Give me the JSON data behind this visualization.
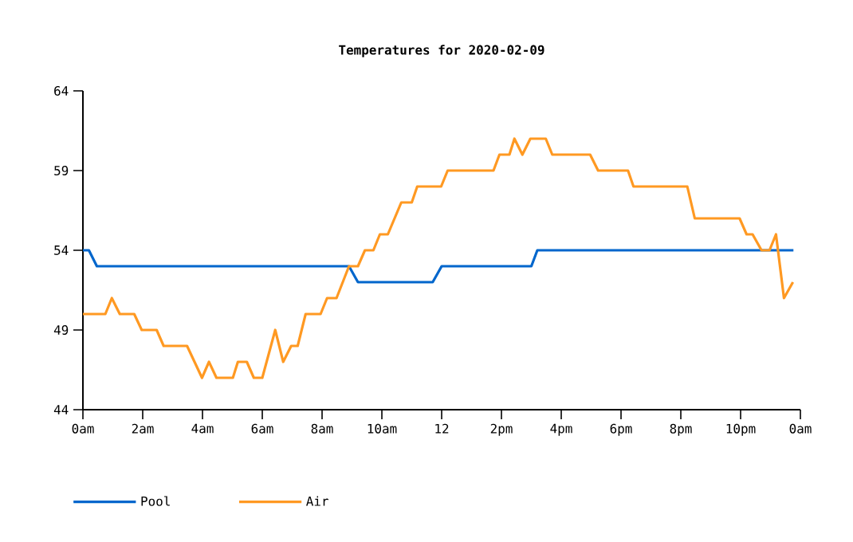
{
  "chart_data": {
    "type": "line",
    "title": "Temperatures for 2020-02-09",
    "xlim": [
      "2020-02-09T00:00",
      "2020-02-10T00:00"
    ],
    "ylim": [
      44,
      64
    ],
    "xticks": [
      {
        "value": "2020-02-09T00:00",
        "label": "0am"
      },
      {
        "value": "2020-02-09T02:00",
        "label": "2am"
      },
      {
        "value": "2020-02-09T04:00",
        "label": "4am"
      },
      {
        "value": "2020-02-09T06:00",
        "label": "6am"
      },
      {
        "value": "2020-02-09T08:00",
        "label": "8am"
      },
      {
        "value": "2020-02-09T10:00",
        "label": "10am"
      },
      {
        "value": "2020-02-09T12:00",
        "label": "12"
      },
      {
        "value": "2020-02-09T14:00",
        "label": "2pm"
      },
      {
        "value": "2020-02-09T16:00",
        "label": "4pm"
      },
      {
        "value": "2020-02-09T18:00",
        "label": "6pm"
      },
      {
        "value": "2020-02-09T20:00",
        "label": "8pm"
      },
      {
        "value": "2020-02-09T22:00",
        "label": "10pm"
      },
      {
        "value": "2020-02-10T00:00",
        "label": "0am"
      }
    ],
    "yticks": [
      44,
      49,
      54,
      59,
      64
    ],
    "grid": false,
    "legend": "bottom",
    "marker": "none",
    "line_style": "solid",
    "series": [
      {
        "name": "Pool",
        "color": "#0066cc",
        "x": [
          "2020-02-09T00:00",
          "2020-02-09T00:12",
          "2020-02-09T00:28",
          "2020-02-09T08:54",
          "2020-02-09T09:12",
          "2020-02-09T11:42",
          "2020-02-09T12:00",
          "2020-02-09T15:00",
          "2020-02-09T15:12",
          "2020-02-09T23:46"
        ],
        "values": [
          54,
          54,
          53,
          53,
          52,
          52,
          53,
          53,
          54,
          54
        ]
      },
      {
        "name": "Air",
        "color": "#ff9922",
        "x": [
          "2020-02-09T00:00",
          "2020-02-09T00:45",
          "2020-02-09T00:58",
          "2020-02-09T01:14",
          "2020-02-09T01:43",
          "2020-02-09T01:58",
          "2020-02-09T02:28",
          "2020-02-09T02:42",
          "2020-02-09T03:29",
          "2020-02-09T03:59",
          "2020-02-09T04:13",
          "2020-02-09T04:28",
          "2020-02-09T05:01",
          "2020-02-09T05:11",
          "2020-02-09T05:29",
          "2020-02-09T05:43",
          "2020-02-09T06:00",
          "2020-02-09T06:26",
          "2020-02-09T06:42",
          "2020-02-09T06:58",
          "2020-02-09T07:11",
          "2020-02-09T07:27",
          "2020-02-09T07:57",
          "2020-02-09T08:10",
          "2020-02-09T08:29",
          "2020-02-09T08:54",
          "2020-02-09T09:12",
          "2020-02-09T09:26",
          "2020-02-09T09:43",
          "2020-02-09T09:56",
          "2020-02-09T10:12",
          "2020-02-09T10:39",
          "2020-02-09T11:00",
          "2020-02-09T11:11",
          "2020-02-09T11:59",
          "2020-02-09T12:12",
          "2020-02-09T13:44",
          "2020-02-09T13:56",
          "2020-02-09T14:16",
          "2020-02-09T14:26",
          "2020-02-09T14:42",
          "2020-02-09T14:58",
          "2020-02-09T15:29",
          "2020-02-09T15:42",
          "2020-02-09T16:58",
          "2020-02-09T17:14",
          "2020-02-09T18:14",
          "2020-02-09T18:25",
          "2020-02-09T20:13",
          "2020-02-09T20:28",
          "2020-02-09T21:58",
          "2020-02-09T22:12",
          "2020-02-09T22:24",
          "2020-02-09T22:42",
          "2020-02-09T22:58",
          "2020-02-09T23:11",
          "2020-02-09T23:27",
          "2020-02-09T23:45"
        ],
        "values": [
          50,
          50,
          51,
          50,
          50,
          49,
          49,
          48,
          48,
          46,
          47,
          46,
          46,
          47,
          47,
          46,
          46,
          49,
          47,
          48,
          48,
          50,
          50,
          51,
          51,
          53,
          53,
          54,
          54,
          55,
          55,
          57,
          57,
          58,
          58,
          59,
          59,
          60,
          60,
          61,
          60,
          61,
          61,
          60,
          60,
          59,
          59,
          58,
          58,
          56,
          56,
          55,
          55,
          54,
          54,
          55,
          51,
          52
        ]
      }
    ]
  }
}
